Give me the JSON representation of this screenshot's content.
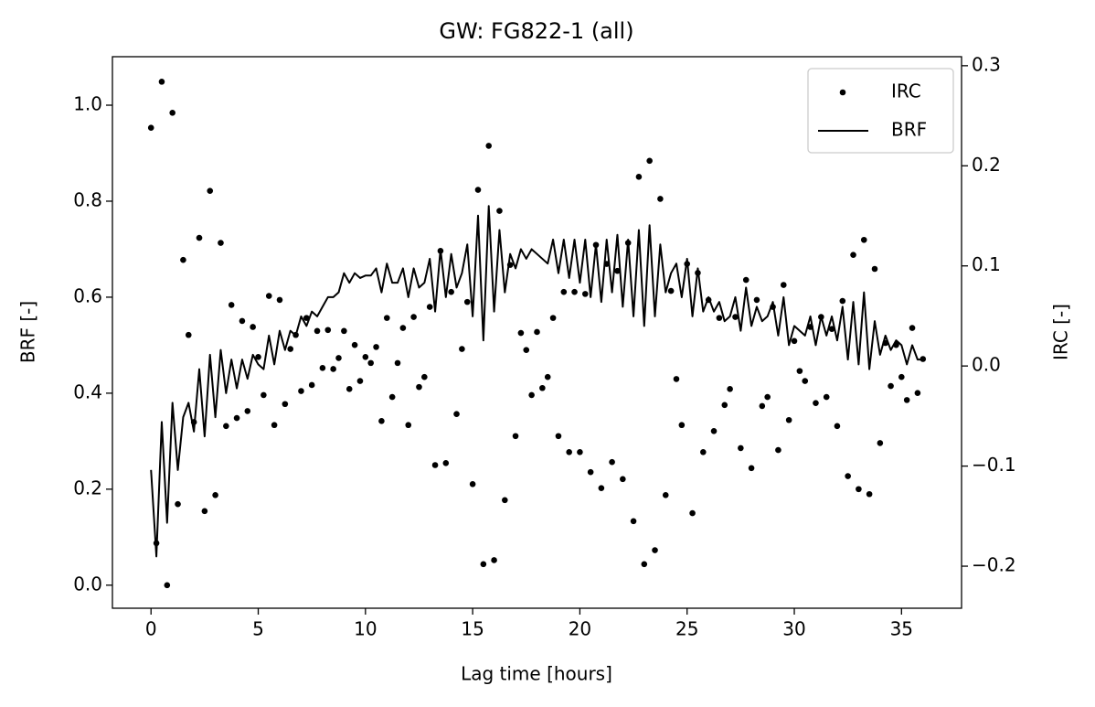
{
  "chart_data": {
    "type": "combo",
    "title": "GW: FG822-1 (all)",
    "xlabel": "Lag time [hours]",
    "ylabel": "BRF [-]",
    "y2label": "IRC [-]",
    "legend": "upper right",
    "x": [
      0,
      0.25,
      0.5,
      0.75,
      1,
      1.25,
      1.5,
      1.75,
      2,
      2.25,
      2.5,
      2.75,
      3,
      3.25,
      3.5,
      3.75,
      4,
      4.25,
      4.5,
      4.75,
      5,
      5.25,
      5.5,
      5.75,
      6,
      6.25,
      6.5,
      6.75,
      7,
      7.25,
      7.5,
      7.75,
      8,
      8.25,
      8.5,
      8.75,
      9,
      9.25,
      9.5,
      9.75,
      10,
      10.25,
      10.5,
      10.75,
      11,
      11.25,
      11.5,
      11.75,
      12,
      12.25,
      12.5,
      12.75,
      13,
      13.25,
      13.5,
      13.75,
      14,
      14.25,
      14.5,
      14.75,
      15,
      15.25,
      15.5,
      15.75,
      16,
      16.25,
      16.5,
      16.75,
      17,
      17.25,
      17.5,
      17.75,
      18,
      18.25,
      18.5,
      18.75,
      19,
      19.25,
      19.5,
      19.75,
      20,
      20.25,
      20.5,
      20.75,
      21,
      21.25,
      21.5,
      21.75,
      22,
      22.25,
      22.5,
      22.75,
      23,
      23.25,
      23.5,
      23.75,
      24,
      24.25,
      24.5,
      24.75,
      25,
      25.25,
      25.5,
      25.75,
      26,
      26.25,
      26.5,
      26.75,
      27,
      27.25,
      27.5,
      27.75,
      28,
      28.25,
      28.5,
      28.75,
      29,
      29.25,
      29.5,
      29.75,
      30,
      30.25,
      30.5,
      30.75,
      31,
      31.25,
      31.5,
      31.75,
      32,
      32.25,
      32.5,
      32.75,
      33,
      33.25,
      33.5,
      33.75,
      34,
      34.25,
      34.5,
      34.75,
      35,
      35.25,
      35.5,
      35.75,
      36
    ],
    "series": [
      {
        "name": "IRC",
        "type": "scatter",
        "axis": "y2",
        "color": "#000000",
        "values": [
          0.238,
          -0.177,
          0.284,
          -0.219,
          0.253,
          -0.138,
          0.106,
          0.031,
          -0.056,
          0.128,
          -0.145,
          0.175,
          -0.129,
          0.123,
          -0.06,
          0.061,
          -0.052,
          0.045,
          -0.045,
          0.039,
          0.009,
          -0.029,
          0.07,
          -0.059,
          0.066,
          -0.038,
          0.017,
          0.031,
          -0.025,
          0.048,
          -0.019,
          0.035,
          -0.002,
          0.036,
          -0.003,
          0.008,
          0.035,
          -0.023,
          0.021,
          -0.015,
          0.009,
          0.003,
          0.019,
          -0.055,
          0.048,
          -0.031,
          0.003,
          0.038,
          -0.059,
          0.049,
          -0.021,
          -0.011,
          0.059,
          -0.099,
          0.115,
          -0.097,
          0.074,
          -0.048,
          0.017,
          0.064,
          -0.118,
          0.176,
          -0.198,
          0.22,
          -0.194,
          0.155,
          -0.134,
          0.101,
          -0.07,
          0.033,
          0.016,
          -0.029,
          0.034,
          -0.022,
          -0.011,
          0.048,
          -0.07,
          0.074,
          -0.086,
          0.074,
          -0.086,
          0.072,
          -0.106,
          0.121,
          -0.122,
          0.102,
          -0.096,
          0.095,
          -0.113,
          0.123,
          -0.155,
          0.189,
          -0.198,
          0.205,
          -0.184,
          0.167,
          -0.129,
          0.075,
          -0.013,
          -0.059,
          0.102,
          -0.147,
          0.093,
          -0.086,
          0.066,
          -0.065,
          0.048,
          -0.039,
          -0.023,
          0.049,
          -0.082,
          0.086,
          -0.102,
          0.066,
          -0.04,
          -0.031,
          0.059,
          -0.084,
          0.081,
          -0.054,
          0.025,
          -0.005,
          -0.015,
          0.039,
          -0.037,
          0.049,
          -0.031,
          0.037,
          -0.06,
          0.065,
          -0.11,
          0.111,
          -0.123,
          0.126,
          -0.128,
          0.097,
          -0.077,
          0.023,
          -0.02,
          0.021,
          -0.011,
          -0.034,
          0.038,
          -0.027,
          0.007
        ]
      },
      {
        "name": "BRF",
        "type": "line",
        "axis": "y",
        "color": "#000000",
        "values": [
          0.24,
          0.06,
          0.34,
          0.13,
          0.38,
          0.24,
          0.35,
          0.38,
          0.32,
          0.45,
          0.31,
          0.48,
          0.35,
          0.49,
          0.4,
          0.47,
          0.41,
          0.47,
          0.43,
          0.48,
          0.46,
          0.45,
          0.52,
          0.46,
          0.53,
          0.49,
          0.53,
          0.52,
          0.56,
          0.54,
          0.57,
          0.56,
          0.58,
          0.6,
          0.6,
          0.61,
          0.65,
          0.63,
          0.65,
          0.64,
          0.645,
          0.645,
          0.66,
          0.61,
          0.67,
          0.63,
          0.63,
          0.66,
          0.6,
          0.66,
          0.62,
          0.63,
          0.68,
          0.57,
          0.7,
          0.6,
          0.69,
          0.62,
          0.65,
          0.71,
          0.56,
          0.77,
          0.51,
          0.79,
          0.57,
          0.74,
          0.61,
          0.69,
          0.66,
          0.7,
          0.68,
          0.7,
          0.69,
          0.68,
          0.67,
          0.72,
          0.65,
          0.72,
          0.64,
          0.72,
          0.63,
          0.72,
          0.6,
          0.71,
          0.59,
          0.72,
          0.61,
          0.73,
          0.58,
          0.72,
          0.56,
          0.74,
          0.54,
          0.75,
          0.56,
          0.71,
          0.61,
          0.65,
          0.67,
          0.6,
          0.68,
          0.56,
          0.66,
          0.57,
          0.6,
          0.57,
          0.59,
          0.55,
          0.56,
          0.6,
          0.53,
          0.62,
          0.54,
          0.58,
          0.55,
          0.56,
          0.59,
          0.52,
          0.6,
          0.5,
          0.54,
          0.53,
          0.52,
          0.56,
          0.5,
          0.56,
          0.52,
          0.56,
          0.51,
          0.58,
          0.47,
          0.59,
          0.46,
          0.61,
          0.45,
          0.55,
          0.48,
          0.52,
          0.49,
          0.51,
          0.5,
          0.46,
          0.5,
          0.47,
          0.47
        ]
      }
    ],
    "xlim": [
      -1.8,
      37.8
    ],
    "xticks": [
      0,
      5,
      10,
      15,
      20,
      25,
      30,
      35
    ],
    "ylim": [
      -0.048,
      1.101
    ],
    "yticks": [
      {
        "value": 0,
        "label": "0.0"
      },
      0.2,
      0.4,
      0.6,
      0.8,
      {
        "value": 1,
        "label": "1.0"
      }
    ],
    "y2lim": [
      -0.242,
      0.309
    ],
    "y2ticks": [
      {
        "value": -0.2,
        "label": "−0.2"
      },
      {
        "value": -0.1,
        "label": "−0.1"
      },
      {
        "value": 0,
        "label": "0.0"
      },
      0.1,
      0.2,
      0.3
    ]
  }
}
